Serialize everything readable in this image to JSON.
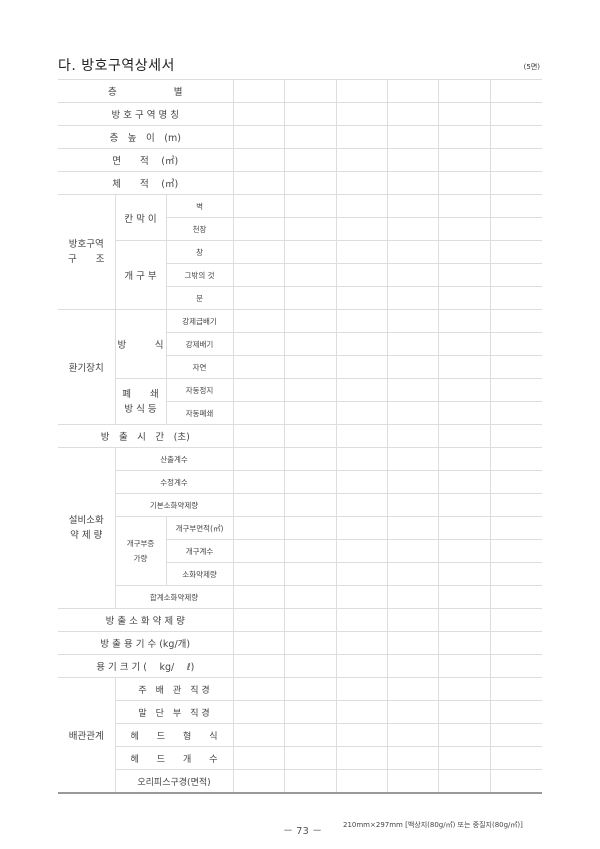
{
  "header": {
    "title": "다. 방호구역상세서",
    "page_tag": "(5면)"
  },
  "table": {
    "rows_simple": {
      "floor": "층　　　　　　별",
      "zone_name": "방 호 구 역 명 칭",
      "floor_height": "층　높　이　(m)",
      "area": "면　　적　 (㎡)",
      "volume": "체　　적　 (㎥)",
      "discharge_time": "방　출　시　간　(초)",
      "discharge_agent": "방 출 소 화 약 제 량",
      "container_count": "방 출 용 기 수 (kg/개)",
      "container_size": "용 기 크 기 (　 kg/　 ℓ)"
    },
    "structure": {
      "label": [
        "방호구역",
        "구　　조"
      ],
      "partition": {
        "label": "칸 막 이",
        "items": [
          "벽",
          "천장"
        ]
      },
      "opening": {
        "label": "개 구 부",
        "items": [
          "창",
          "그밖의 것",
          "문"
        ]
      }
    },
    "ventilation": {
      "label": "환기장치",
      "method": {
        "label": "방　　　식",
        "items": [
          "강제급배기",
          "강제배기",
          "자연"
        ]
      },
      "closing": {
        "label": [
          "폐　　쇄",
          "방 식 등"
        ],
        "items": [
          "자동정지",
          "자동폐쇄"
        ]
      }
    },
    "agent": {
      "label": [
        "설비소화",
        "약 제 량"
      ],
      "items": [
        "산출계수",
        "수정계수",
        "기본소화약제량"
      ],
      "opening_add": {
        "label": [
          "개구부증",
          "가량"
        ],
        "items": [
          "개구부면적(㎡)",
          "개구계수",
          "소화약제량"
        ]
      },
      "total": "합계소화약제량"
    },
    "piping": {
      "label": "배관관계",
      "items": [
        "주　배　관　직 경",
        "말　단　부　직 경",
        "헤　　드　　형　　식",
        "헤　　드　　개　　수",
        "오리피스구경(면적)"
      ]
    },
    "data_columns": 6
  },
  "footer": {
    "page": "－ 73 －",
    "note": "210mm×297mm [백상지(80g/㎡) 또는 중질지(80g/㎡)]"
  }
}
